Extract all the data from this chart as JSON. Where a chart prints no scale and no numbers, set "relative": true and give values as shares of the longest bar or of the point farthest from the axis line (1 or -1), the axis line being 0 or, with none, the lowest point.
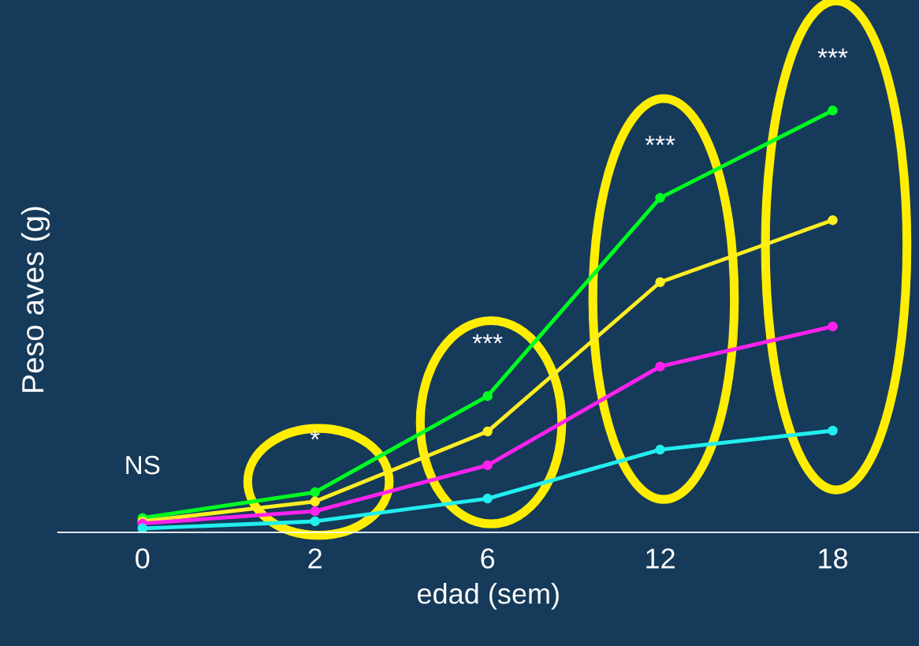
{
  "chart_data": {
    "type": "line",
    "xlabel": "edad (sem)",
    "ylabel": "Peso aves (g)",
    "categories": [
      "0",
      "2",
      "6",
      "12",
      "18"
    ],
    "relative": true,
    "tick_labels": "x",
    "marker": "circle",
    "grid": false,
    "series": [
      {
        "color": "#00ff22",
        "values": [
          0.034,
          0.095,
          0.323,
          0.793,
          1
        ]
      },
      {
        "color": "#ffee22",
        "values": [
          0.026,
          0.073,
          0.239,
          0.593,
          0.74
        ]
      },
      {
        "color": "#ff22ee",
        "values": [
          0.021,
          0.05,
          0.159,
          0.393,
          0.488
        ]
      },
      {
        "color": "#22eeee",
        "values": [
          0.009,
          0.026,
          0.08,
          0.196,
          0.241
        ]
      }
    ],
    "annotations": [
      "NS",
      "*",
      "***",
      "***",
      "***"
    ]
  }
}
